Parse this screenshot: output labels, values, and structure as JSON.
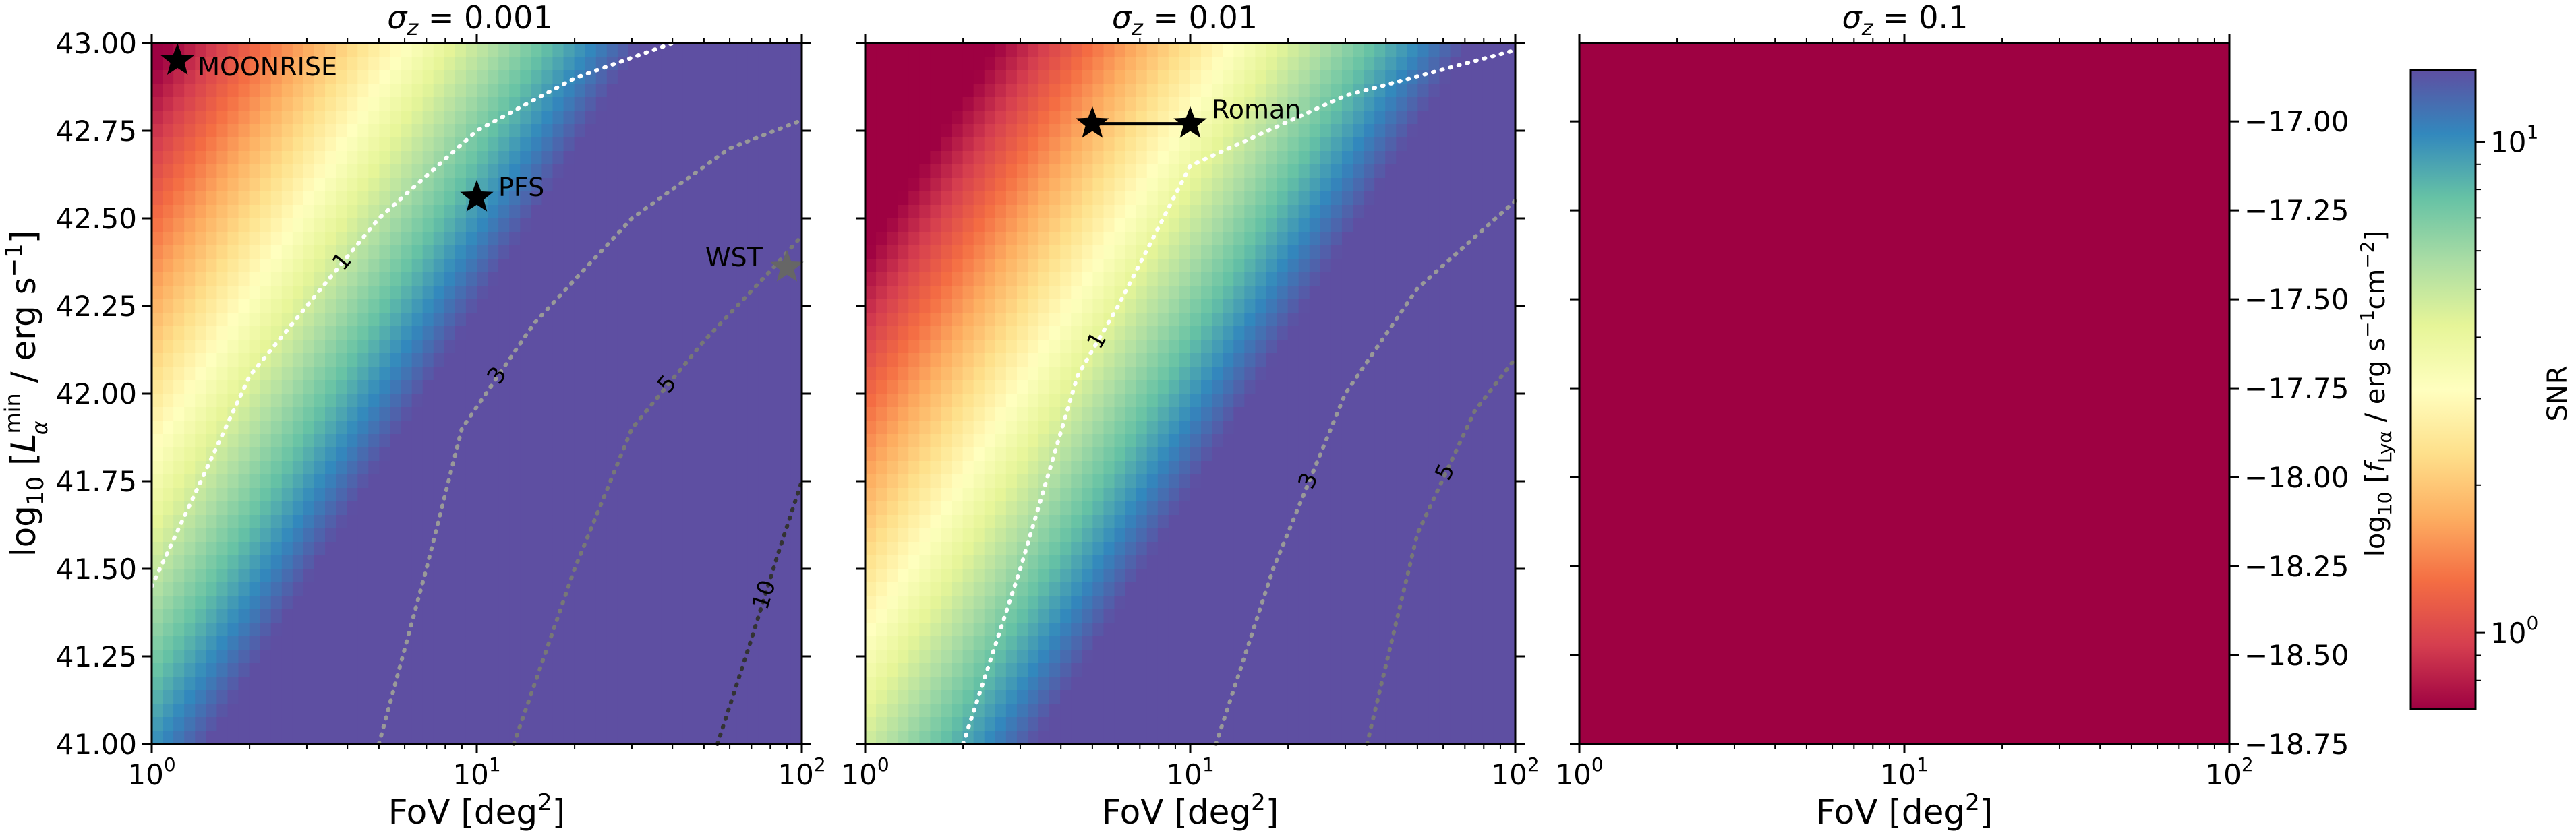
{
  "chart_data": [
    {
      "type": "heatmap",
      "title": "σz = 0.001",
      "title_sym": "σ",
      "title_sub": "z",
      "title_val": " = 0.001",
      "xlabel_text": "FoV [deg",
      "xlabel_sup": "2",
      "xlabel_close": "]",
      "x_scale": "log",
      "xlim": [
        1,
        100
      ],
      "ylim": [
        41.0,
        43.0
      ],
      "xticks": [
        {
          "value": 1,
          "base": "10",
          "exp": "0"
        },
        {
          "value": 10,
          "base": "10",
          "exp": "1"
        },
        {
          "value": 100,
          "base": "10",
          "exp": "2"
        }
      ],
      "yticks": [
        "41.00",
        "41.25",
        "41.50",
        "41.75",
        "42.00",
        "42.25",
        "42.50",
        "42.75",
        "43.00"
      ],
      "ylabel_parts": {
        "prefix": "log",
        "sub10": "10",
        "bracket_open": " [",
        "L": "L",
        "sup": "min",
        "sub": "α",
        "rest": " / erg s",
        "exp": "−1",
        "bracket_close": "]"
      },
      "snr_model": {
        "c": 0.62,
        "a": 0.9,
        "b": 1.2,
        "y_ref": 43.0
      },
      "contours": [
        {
          "label": "1",
          "level": 1,
          "color": "#ffffff",
          "points": [
            [
              1.0,
              41.45
            ],
            [
              1.5,
              41.8
            ],
            [
              2.0,
              42.05
            ],
            [
              3.0,
              42.25
            ],
            [
              5.0,
              42.5
            ],
            [
              10.0,
              42.75
            ],
            [
              20.0,
              42.9
            ],
            [
              40.0,
              43.0
            ]
          ]
        },
        {
          "label": "3",
          "level": 3,
          "color": "#999999",
          "points": [
            [
              5.0,
              41.0
            ],
            [
              7.0,
              41.5
            ],
            [
              9.0,
              41.9
            ],
            [
              15.0,
              42.2
            ],
            [
              30.0,
              42.5
            ],
            [
              60.0,
              42.7
            ],
            [
              100.0,
              42.78
            ]
          ]
        },
        {
          "label": "5",
          "level": 5,
          "color": "#777777",
          "points": [
            [
              13.0,
              41.0
            ],
            [
              20.0,
              41.5
            ],
            [
              30.0,
              41.9
            ],
            [
              50.0,
              42.15
            ],
            [
              80.0,
              42.35
            ],
            [
              100.0,
              42.45
            ]
          ]
        },
        {
          "label": "10",
          "level": 10,
          "color": "#333333",
          "points": [
            [
              55.0,
              41.0
            ],
            [
              70.0,
              41.3
            ],
            [
              85.0,
              41.55
            ],
            [
              100.0,
              41.75
            ]
          ]
        }
      ],
      "markers": [
        {
          "label": "MOONRISE",
          "x": 1.2,
          "y": 42.95,
          "color": "#000000"
        },
        {
          "label": "PFS",
          "x": 10,
          "y": 42.56,
          "color": "#000000"
        },
        {
          "label": "WST",
          "x": 90,
          "y": 42.36,
          "color": "#666666"
        }
      ]
    },
    {
      "type": "heatmap",
      "title": "σz = 0.01",
      "title_sym": "σ",
      "title_sub": "z",
      "title_val": " = 0.01",
      "xlabel_text": "FoV [deg",
      "xlabel_sup": "2",
      "xlabel_close": "]",
      "x_scale": "log",
      "xlim": [
        1,
        100
      ],
      "ylim": [
        41.0,
        43.0
      ],
      "xticks": [
        {
          "value": 1,
          "base": "10",
          "exp": "0"
        },
        {
          "value": 10,
          "base": "10",
          "exp": "1"
        },
        {
          "value": 100,
          "base": "10",
          "exp": "2"
        }
      ],
      "snr_model": {
        "c": 0.3,
        "a": 0.9,
        "b": 1.2,
        "y_ref": 43.0
      },
      "contours": [
        {
          "label": "1",
          "level": 1,
          "color": "#ffffff",
          "points": [
            [
              2.0,
              41.0
            ],
            [
              3.0,
              41.5
            ],
            [
              4.5,
              42.05
            ],
            [
              6.0,
              42.25
            ],
            [
              10.0,
              42.65
            ],
            [
              30.0,
              42.85
            ],
            [
              100.0,
              42.98
            ]
          ]
        },
        {
          "label": "3",
          "level": 3,
          "color": "#999999",
          "points": [
            [
              12.0,
              41.0
            ],
            [
              18.0,
              41.5
            ],
            [
              30.0,
              42.0
            ],
            [
              50.0,
              42.3
            ],
            [
              100.0,
              42.55
            ]
          ]
        },
        {
          "label": "5",
          "level": 5,
          "color": "#777777",
          "points": [
            [
              35.0,
              41.0
            ],
            [
              50.0,
              41.6
            ],
            [
              75.0,
              41.95
            ],
            [
              100.0,
              42.1
            ]
          ]
        }
      ],
      "markers": [
        {
          "label": "",
          "x": 5,
          "y": 42.77,
          "color": "#000000"
        },
        {
          "label": "Roman",
          "x": 10,
          "y": 42.77,
          "color": "#000000"
        }
      ],
      "segment": {
        "from": [
          5,
          42.77
        ],
        "to": [
          10,
          42.77
        ]
      }
    },
    {
      "type": "heatmap",
      "title": "σz = 0.1",
      "title_sym": "σ",
      "title_sub": "z",
      "title_val": " = 0.1",
      "xlabel_text": "FoV [deg",
      "xlabel_sup": "2",
      "xlabel_close": "]",
      "x_scale": "log",
      "xlim": [
        1,
        100
      ],
      "xticks": [
        {
          "value": 1,
          "base": "10",
          "exp": "0"
        },
        {
          "value": 10,
          "base": "10",
          "exp": "1"
        },
        {
          "value": 100,
          "base": "10",
          "exp": "2"
        }
      ],
      "fill_color": "#9e0142",
      "right_axis": {
        "ylim": [
          -18.75,
          -16.78
        ],
        "yticks": [
          "−17.00",
          "−17.25",
          "−17.50",
          "−17.75",
          "−18.00",
          "−18.25",
          "−18.50",
          "−18.75"
        ],
        "ytick_values": [
          -17.0,
          -17.25,
          -17.5,
          -17.75,
          -18.0,
          -18.25,
          -18.5,
          -18.75
        ],
        "label_parts": {
          "prefix": "log",
          "sub10": "10",
          "open": " [",
          "f": "f",
          "sub": "Lyα",
          "mid": " / erg s",
          "exp1": "−1",
          "cm": "cm",
          "exp2": "−2",
          "close": "]"
        }
      }
    }
  ],
  "colorbar": {
    "label": "SNR",
    "scale": "log",
    "range": [
      0.7,
      14
    ],
    "ticks": [
      {
        "value": 1,
        "base": "10",
        "exp": "0"
      },
      {
        "value": 10,
        "base": "10",
        "exp": "1"
      }
    ],
    "colormap": "Spectral",
    "stops": [
      "#9e0142",
      "#d53e4f",
      "#f46d43",
      "#fdae61",
      "#fee08b",
      "#ffffbf",
      "#e6f598",
      "#abdda4",
      "#66c2a5",
      "#3288bd",
      "#5e4fa2"
    ]
  }
}
